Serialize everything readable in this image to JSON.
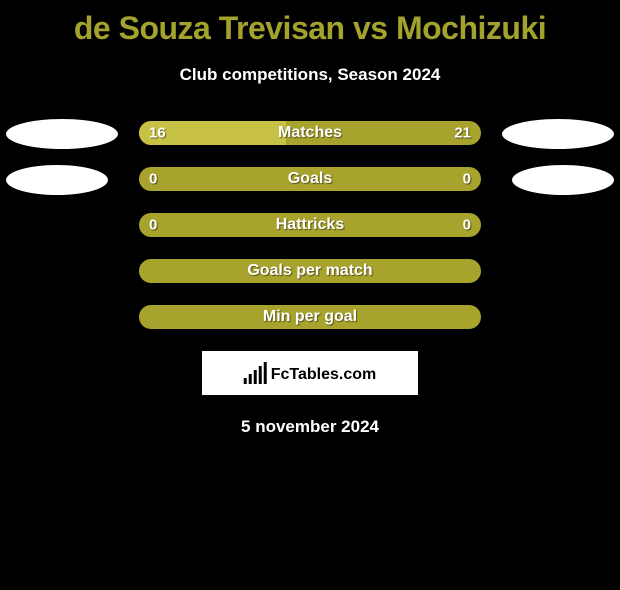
{
  "title": "de Souza Trevisan vs Mochizuki",
  "subtitle": "Club competitions, Season 2024",
  "logo_text": "FcTables.com",
  "date": "5 november 2024",
  "bar_bg_color": "#a8a32d",
  "bar_light_color": "#c7c245",
  "ellipse_color": "#ffffff",
  "background_color": "#000000",
  "text_color": "#ffffff",
  "rows": [
    {
      "label": "Matches",
      "left_val": "16",
      "right_val": "21",
      "left_pct": 43,
      "full_fill": true,
      "show_ellipses": true,
      "ellipse_left_width": 112,
      "ellipse_right_width": 112
    },
    {
      "label": "Goals",
      "left_val": "0",
      "right_val": "0",
      "left_pct": 0,
      "full_fill": true,
      "show_ellipses": true,
      "ellipse_left_width": 102,
      "ellipse_right_width": 102
    },
    {
      "label": "Hattricks",
      "left_val": "0",
      "right_val": "0",
      "left_pct": 0,
      "full_fill": true,
      "show_ellipses": false
    },
    {
      "label": "Goals per match",
      "left_val": "",
      "right_val": "",
      "left_pct": 0,
      "full_fill": false,
      "show_ellipses": false
    },
    {
      "label": "Min per goal",
      "left_val": "",
      "right_val": "",
      "left_pct": 0,
      "full_fill": false,
      "show_ellipses": false
    }
  ]
}
